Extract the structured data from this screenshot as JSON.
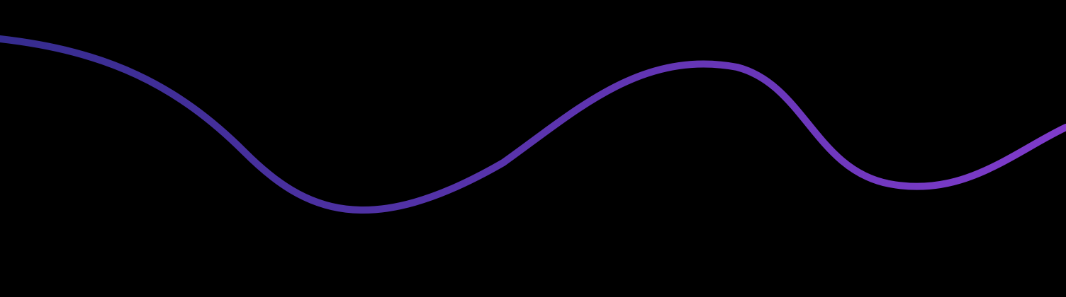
{
  "background": "#000000",
  "wave": {
    "gradient_start": "#352C8E",
    "gradient_end": "#7F3BCB"
  }
}
